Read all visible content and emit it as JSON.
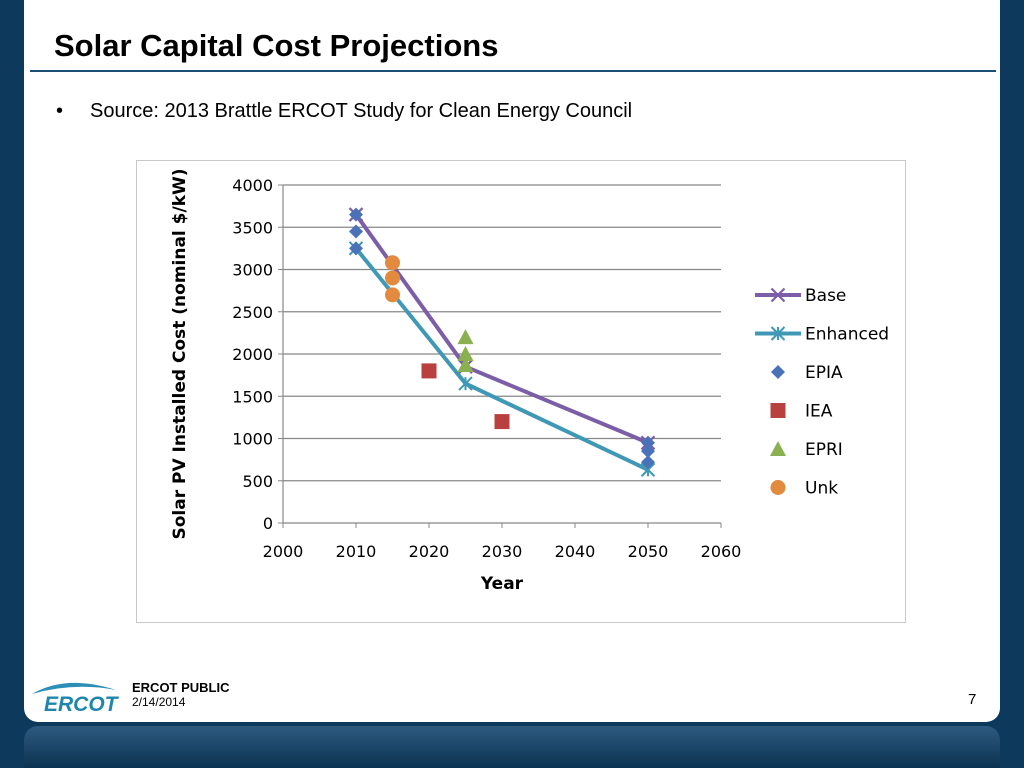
{
  "slide": {
    "title": "Solar Capital Cost Projections",
    "bullet_text": "Source: 2013 Brattle ERCOT Study for Clean Energy Council",
    "footer_label": "ERCOT PUBLIC",
    "footer_date": "2/14/2014",
    "page_number": "7",
    "logo_text": "ERCOT"
  },
  "chart_data": {
    "type": "scatter",
    "title": "",
    "xlabel": "Year",
    "ylabel": "Solar PV Installed Cost (nominal $/kW)",
    "xlim": [
      2000,
      2060
    ],
    "ylim": [
      0,
      4000
    ],
    "xticks": [
      2000,
      2010,
      2020,
      2030,
      2040,
      2050,
      2060
    ],
    "yticks": [
      0,
      500,
      1000,
      1500,
      2000,
      2500,
      3000,
      3500,
      4000
    ],
    "grid": "horizontal",
    "legend_position": "right",
    "series": [
      {
        "name": "Base",
        "kind": "line",
        "marker": "x",
        "color": "#7b5ea7",
        "points": [
          [
            2010,
            3650
          ],
          [
            2025,
            1850
          ],
          [
            2050,
            950
          ]
        ]
      },
      {
        "name": "Enhanced",
        "kind": "line",
        "marker": "asterisk",
        "color": "#3f98b5",
        "points": [
          [
            2010,
            3250
          ],
          [
            2025,
            1650
          ],
          [
            2050,
            630
          ]
        ]
      },
      {
        "name": "EPIA",
        "kind": "scatter",
        "marker": "diamond",
        "color": "#4a72b8",
        "points": [
          [
            2010,
            3650
          ],
          [
            2010,
            3450
          ],
          [
            2010,
            3250
          ],
          [
            2050,
            950
          ],
          [
            2050,
            850
          ],
          [
            2050,
            720
          ]
        ]
      },
      {
        "name": "IEA",
        "kind": "scatter",
        "marker": "square",
        "color": "#b8403e",
        "points": [
          [
            2020,
            1800
          ],
          [
            2030,
            1200
          ]
        ]
      },
      {
        "name": "EPRI",
        "kind": "scatter",
        "marker": "triangle",
        "color": "#8bb050",
        "points": [
          [
            2025,
            2200
          ],
          [
            2025,
            2000
          ],
          [
            2025,
            1870
          ]
        ]
      },
      {
        "name": "Unk",
        "kind": "scatter",
        "marker": "circle",
        "color": "#e28a3e",
        "points": [
          [
            2015,
            3080
          ],
          [
            2015,
            2900
          ],
          [
            2015,
            2700
          ]
        ]
      }
    ]
  }
}
